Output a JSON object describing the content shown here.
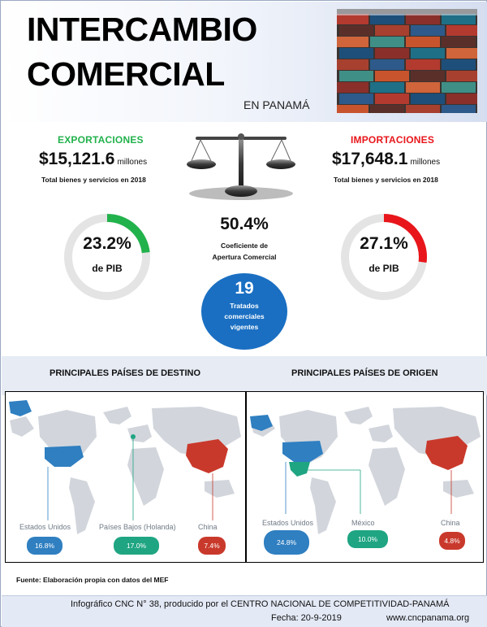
{
  "header": {
    "title_line1": "INTERCAMBIO",
    "title_line2": "COMERCIAL",
    "subtitle": "EN PANAMÁ"
  },
  "exports": {
    "label": "EXPORTACIONES",
    "amount": "$15,121.6",
    "unit": "millones",
    "note": "Total bienes y servicios en 2018",
    "pib_percent": "23.2%",
    "pib_value": 23.2,
    "pib_label": "de PIB",
    "color": "#22b24c"
  },
  "imports": {
    "label": "IMPORTACIONES",
    "amount": "$17,648.1",
    "unit": "millones",
    "note": "Total bienes y servicios en 2018",
    "pib_percent": "27.1%",
    "pib_value": 27.1,
    "pib_label": "de PIB",
    "color": "#e8161b"
  },
  "openness": {
    "percent": "50.4%",
    "label_line1": "Coeficiente de",
    "label_line2": "Apertura Comercial"
  },
  "treaties": {
    "count": "19",
    "line1": "Tratados",
    "line2": "comerciales",
    "line3": "vigentes"
  },
  "destinations": {
    "heading": "PRINCIPALES PAÍSES DE DESTINO",
    "items": [
      {
        "country": "Estados Unidos",
        "share": "16.8%",
        "color": "#2f7fc1"
      },
      {
        "country": "Países Bajos (Holanda)",
        "share": "17.0%",
        "color": "#1fa582"
      },
      {
        "country": "China",
        "share": "7.4%",
        "color": "#c9392b"
      }
    ]
  },
  "origins": {
    "heading": "PRINCIPALES PAÍSES DE ORIGEN",
    "items": [
      {
        "country": "Estados Unidos",
        "share": "24.8%",
        "color": "#2f7fc1"
      },
      {
        "country": "México",
        "share": "10.0%",
        "color": "#1fa582"
      },
      {
        "country": "China",
        "share": "4.8%",
        "color": "#c9392b"
      }
    ]
  },
  "source": "Fuente: Elaboración propia con datos del MEF",
  "footer": {
    "line1": "Infográfico CNC N° 38, producido por el CENTRO NACIONAL DE COMPETITIVIDAD-PANAMÁ",
    "date": "Fecha: 20-9-2019",
    "website": "www.cncpanama.org"
  }
}
